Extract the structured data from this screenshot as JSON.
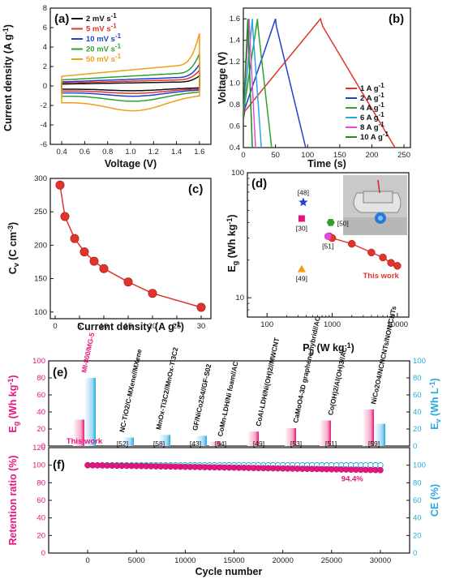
{
  "colors": {
    "red": "#e0332b",
    "pink": "#e5157f",
    "blue": "#1f3fd1",
    "cyan": "#27a9e1",
    "black": "#111111",
    "green": "#2ea02e",
    "orange": "#f39c1a",
    "magenta": "#e04bd8"
  },
  "panels": {
    "a": {
      "label": "(a)"
    },
    "b": {
      "label": "(b)"
    },
    "c": {
      "label": "(c)"
    },
    "d": {
      "label": "(d)"
    },
    "e": {
      "label": "(e)"
    },
    "f": {
      "label": "(f)"
    }
  },
  "chart_data": [
    {
      "id": "a",
      "type": "line",
      "xlabel": "Voltage (V)",
      "ylabel": "Current density (A g-1)",
      "xlim": [
        0.3,
        1.7
      ],
      "ylim": [
        -6,
        8
      ],
      "xticks": [
        "0.4",
        "0.6",
        "0.8",
        "1.0",
        "1.2",
        "1.4",
        "1.6"
      ],
      "yticks": [
        "-6",
        "-4",
        "-2",
        "0",
        "2",
        "4",
        "6",
        "8"
      ],
      "legend_position": "top-left",
      "series": [
        {
          "name": "2 mV s-1",
          "color": "#111111",
          "scale": 1.0
        },
        {
          "name": "5 mV s-1",
          "color": "#e0332b",
          "scale": 1.55
        },
        {
          "name": "10 mV s-1",
          "color": "#1f3fd1",
          "scale": 2.15
        },
        {
          "name": "20 mV s-1",
          "color": "#2ea02e",
          "scale": 3.2
        },
        {
          "name": "50 mV s-1",
          "color": "#f39c1a",
          "scale": 5.2
        }
      ]
    },
    {
      "id": "b",
      "type": "line",
      "xlabel": "Time (s)",
      "ylabel": "Voltage (V)",
      "xlim": [
        0,
        260
      ],
      "ylim": [
        0.4,
        1.7
      ],
      "xticks": [
        "0",
        "50",
        "100",
        "150",
        "200",
        "250"
      ],
      "yticks": [
        "0.4",
        "0.6",
        "0.8",
        "1.0",
        "1.2",
        "1.4",
        "1.6"
      ],
      "legend_position": "lower-right",
      "series": [
        {
          "name": "1 A g-1",
          "color": "#e0332b",
          "charge_end": 120,
          "end": 236
        },
        {
          "name": "2 A g-1",
          "color": "#1f3fd1",
          "charge_end": 50,
          "end": 97
        },
        {
          "name": "4 A g-1",
          "color": "#2ea02e",
          "charge_end": 22,
          "end": 44
        },
        {
          "name": "6 A g-1",
          "color": "#27a9e1",
          "charge_end": 14,
          "end": 28
        },
        {
          "name": "8 A g-1",
          "color": "#e04bd8",
          "charge_end": 9,
          "end": 19
        },
        {
          "name": "10 A g-1",
          "color": "#1a8f1a",
          "charge_end": 7,
          "end": 14
        }
      ]
    },
    {
      "id": "c",
      "type": "line",
      "xlabel": "Current density (A g-1)",
      "ylabel": "Cv (C cm-3)",
      "xlim": [
        -1,
        32
      ],
      "ylim": [
        90,
        300
      ],
      "xticks": [
        "0",
        "5",
        "10",
        "15",
        "20",
        "25",
        "30"
      ],
      "yticks": [
        "100",
        "150",
        "200",
        "250",
        "300"
      ],
      "series": [
        {
          "name": "",
          "color": "#e0332b",
          "x": [
            1,
            2,
            4,
            6,
            8,
            10,
            15,
            20,
            30
          ],
          "y": [
            290,
            243,
            210,
            190,
            176,
            165,
            145,
            128,
            107
          ]
        }
      ]
    },
    {
      "id": "d",
      "type": "scatter",
      "xlabel": "Pg (W kg-1)",
      "ylabel": "Eg (Wh kg-1)",
      "log_x": true,
      "log_y": true,
      "xlim": [
        50,
        15000
      ],
      "ylim": [
        7,
        100
      ],
      "xticks": [
        "100",
        "1000",
        "10000"
      ],
      "yticks": [
        "10",
        "100"
      ],
      "this_work": {
        "label": "This work",
        "x": [
          900,
          1000,
          2000,
          4000,
          6000,
          8000,
          10000
        ],
        "y": [
          31,
          30,
          27,
          23,
          21,
          19,
          18
        ]
      },
      "references": [
        {
          "label": "[48]",
          "x": 360,
          "y": 58,
          "marker": "star",
          "color": "#1f3fd1"
        },
        {
          "label": "[30]",
          "x": 340,
          "y": 43,
          "marker": "square",
          "color": "#e5157f"
        },
        {
          "label": "[50]",
          "x": 950,
          "y": 40,
          "marker": "hexagon",
          "color": "#2ea02e"
        },
        {
          "label": "[51]",
          "x": 860,
          "y": 31,
          "marker": "circle",
          "color": "#e04bd8"
        },
        {
          "label": "[49]",
          "x": 340,
          "y": 17,
          "marker": "triangle",
          "color": "#f39c1a"
        }
      ]
    },
    {
      "id": "e",
      "type": "bar",
      "ylabel": "Eg (Wh kg-1)",
      "ylabel_right": "Ev (Wh L-1)",
      "ylim": [
        0,
        100
      ],
      "yticks": [
        "0",
        "20",
        "40",
        "60",
        "80",
        "100"
      ],
      "categories": [
        "MI-800/MG-5",
        "NC-TiO2/C-MXene//MXene",
        "MnOx-Ti3C2//MnOx-Ti3C2",
        "GF/NiCo2S4//GF-S02",
        "CoMn-LDH/Ni foam//AC",
        "CoAl-LDH/Ni(OH)2//MWCNT",
        "CaMoO4-3D graphene hybrid//AC",
        "Co(OH)2/Al(OH)3//AC",
        "NiCo2O4/NCNCNTs/NON/CNTs"
      ],
      "refs": [
        "This work",
        "[52]",
        "[58]",
        "[43]",
        "[54]",
        "[49]",
        "[53]",
        "[51]",
        "[59]"
      ],
      "series": [
        {
          "name": "Eg",
          "color": "#e5157f",
          "values": [
            31,
            null,
            null,
            null,
            5,
            17,
            21,
            30,
            43
          ]
        },
        {
          "name": "Ev",
          "color": "#27a9e1",
          "values": [
            80,
            10,
            13,
            12,
            null,
            null,
            null,
            null,
            26
          ]
        }
      ]
    },
    {
      "id": "f",
      "type": "scatter",
      "xlabel": "Cycle number",
      "ylabel": "Retention ratio (%)",
      "ylabel_right": "CE (%)",
      "xlim": [
        -4000,
        33000
      ],
      "ylim": [
        0,
        120
      ],
      "xticks": [
        "0",
        "5000",
        "10000",
        "15000",
        "20000",
        "25000",
        "30000"
      ],
      "yticks": [
        "0",
        "20",
        "40",
        "60",
        "80",
        "100",
        "120"
      ],
      "yticks_right": [
        "0",
        "20",
        "40",
        "60",
        "80",
        "100"
      ],
      "annotation": "94.4%",
      "series": [
        {
          "name": "Retention ratio",
          "color": "#e5157f",
          "start": 100,
          "end": 94.4,
          "count": 61,
          "x_end": 30000
        },
        {
          "name": "CE",
          "color": "#27a9e1",
          "value": 100,
          "count": 61,
          "x_end": 30000
        }
      ]
    }
  ]
}
